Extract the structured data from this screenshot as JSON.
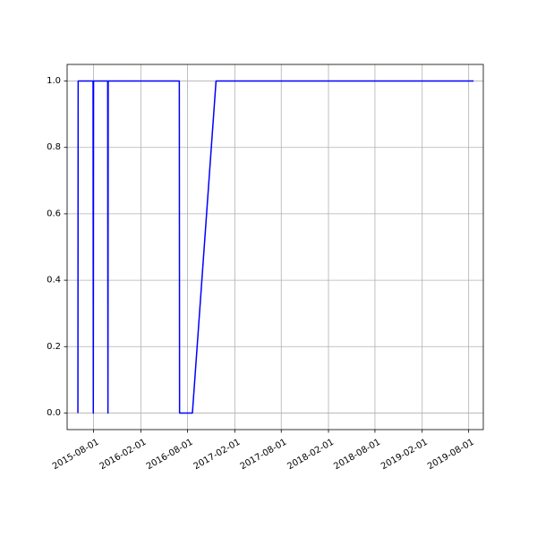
{
  "chart_data": {
    "type": "line",
    "title": "",
    "xlabel": "",
    "ylabel": "",
    "grid": true,
    "x_axis": {
      "scale": "date",
      "range": [
        "2015-04-20",
        "2019-09-27"
      ],
      "ticks": [
        "2015-08-01",
        "2016-02-01",
        "2016-08-01",
        "2017-02-01",
        "2017-08-01",
        "2018-02-01",
        "2018-08-01",
        "2019-02-01",
        "2019-08-01"
      ],
      "tick_labels": [
        "2015-08-01",
        "2016-02-01",
        "2016-08-01",
        "2017-02-01",
        "2017-08-01",
        "2018-02-01",
        "2018-08-01",
        "2019-02-01",
        "2019-08-01"
      ]
    },
    "y_axis": {
      "range": [
        -0.05,
        1.05
      ],
      "ticks": [
        0.0,
        0.2,
        0.4,
        0.6,
        0.8,
        1.0
      ],
      "tick_labels": [
        "0.0",
        "0.2",
        "0.4",
        "0.6",
        "0.8",
        "1.0"
      ]
    },
    "series": [
      {
        "color": "#0000ff",
        "points": [
          {
            "x": "2015-06-01",
            "y": 0
          },
          {
            "x": "2015-06-02",
            "y": 1
          },
          {
            "x": "2015-07-30",
            "y": 1
          },
          {
            "x": "2015-07-31",
            "y": 0
          },
          {
            "x": "2015-08-01",
            "y": 1
          },
          {
            "x": "2015-09-25",
            "y": 1
          },
          {
            "x": "2015-09-26",
            "y": 0
          },
          {
            "x": "2015-09-27",
            "y": 1
          },
          {
            "x": "2016-06-30",
            "y": 1
          },
          {
            "x": "2016-07-01",
            "y": 0
          },
          {
            "x": "2016-08-20",
            "y": 0
          },
          {
            "x": "2016-11-20",
            "y": 1
          },
          {
            "x": "2019-08-20",
            "y": 1
          }
        ]
      }
    ]
  }
}
